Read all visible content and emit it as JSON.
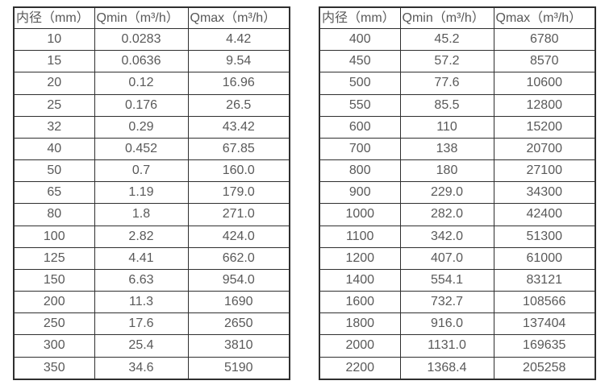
{
  "tables": [
    {
      "name": "flow-spec-table-small-diameters",
      "columns": [
        "内径（mm）",
        "Qmin（m³/h）",
        "Qmax（m³/h）"
      ],
      "rows": [
        [
          "10",
          "0.0283",
          "4.42"
        ],
        [
          "15",
          "0.0636",
          "9.54"
        ],
        [
          "20",
          "0.12",
          "16.96"
        ],
        [
          "25",
          "0.176",
          "26.5"
        ],
        [
          "32",
          "0.29",
          "43.42"
        ],
        [
          "40",
          "0.452",
          "67.85"
        ],
        [
          "50",
          "0.7",
          "160.0"
        ],
        [
          "65",
          "1.19",
          "179.0"
        ],
        [
          "80",
          "1.8",
          "271.0"
        ],
        [
          "100",
          "2.82",
          "424.0"
        ],
        [
          "125",
          "4.41",
          "662.0"
        ],
        [
          "150",
          "6.63",
          "954.0"
        ],
        [
          "200",
          "11.3",
          "1690"
        ],
        [
          "250",
          "17.6",
          "2650"
        ],
        [
          "300",
          "25.4",
          "3810"
        ],
        [
          "350",
          "34.6",
          "5190"
        ]
      ]
    },
    {
      "name": "flow-spec-table-large-diameters",
      "columns": [
        "内径（mm）",
        "Qmin（m³/h）",
        "Qmax（m³/h）"
      ],
      "rows": [
        [
          "400",
          "45.2",
          "6780"
        ],
        [
          "450",
          "57.2",
          "8570"
        ],
        [
          "500",
          "77.6",
          "10600"
        ],
        [
          "550",
          "85.5",
          "12800"
        ],
        [
          "600",
          "110",
          "15200"
        ],
        [
          "700",
          "138",
          "20700"
        ],
        [
          "800",
          "180",
          "27100"
        ],
        [
          "900",
          "229.0",
          "34300"
        ],
        [
          "1000",
          "282.0",
          "42400"
        ],
        [
          "1100",
          "342.0",
          "51300"
        ],
        [
          "1200",
          "407.0",
          "61000"
        ],
        [
          "1400",
          "554.1",
          "83121"
        ],
        [
          "1600",
          "732.7",
          "108566"
        ],
        [
          "1800",
          "916.0",
          "137404"
        ],
        [
          "2000",
          "1131.0",
          "169635"
        ],
        [
          "2200",
          "1368.4",
          "205258"
        ]
      ]
    }
  ],
  "colors": {
    "text": "#595959",
    "border": "#2f2f2f",
    "background": "#ffffff"
  }
}
